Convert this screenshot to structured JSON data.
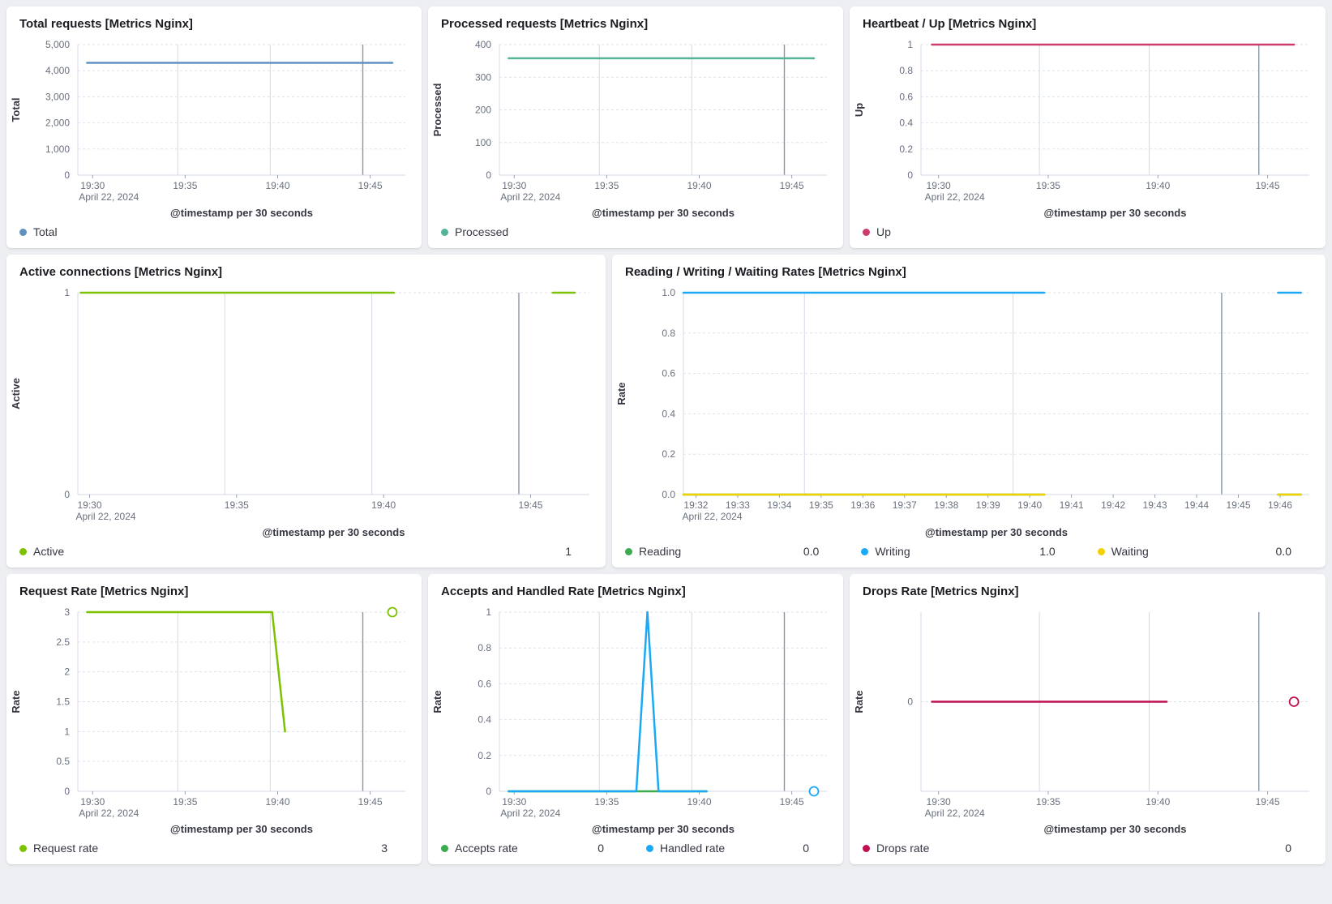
{
  "app": {
    "background": "#edeff3",
    "panel_background": "#ffffff"
  },
  "chart_data": [
    {
      "type": "line",
      "title": "Total requests [Metrics Nginx]",
      "ylabel": "Total",
      "xlabel": "@timestamp per 30 seconds",
      "xlim": [
        -0.8,
        16.9
      ],
      "ylim": [
        0,
        5000
      ],
      "yticks": [
        {
          "v": 5000,
          "label": "5,000"
        },
        {
          "v": 4000,
          "label": "4,000"
        },
        {
          "v": 3000,
          "label": "3,000"
        },
        {
          "v": 2000,
          "label": "2,000"
        },
        {
          "v": 1000,
          "label": "1,000"
        },
        {
          "v": 0,
          "label": "0"
        }
      ],
      "xticks": [
        {
          "v": 0,
          "label": "19:30",
          "sub": "April 22, 2024"
        },
        {
          "v": 5,
          "label": "19:35"
        },
        {
          "v": 10,
          "label": "19:40"
        },
        {
          "v": 15,
          "label": "19:45"
        }
      ],
      "vgrid": [
        4.6,
        9.6
      ],
      "annotation_x": 14.6,
      "series": [
        {
          "name": "Total",
          "color": "#6092C0",
          "segments": [
            [
              [
                -0.3,
                4300
              ],
              [
                16.2,
                4300
              ]
            ]
          ]
        }
      ],
      "legend": [
        {
          "label": "Total"
        }
      ]
    },
    {
      "type": "line",
      "title": "Processed requests [Metrics Nginx]",
      "ylabel": "Processed",
      "xlabel": "@timestamp per 30 seconds",
      "xlim": [
        -0.8,
        16.9
      ],
      "ylim": [
        0,
        400
      ],
      "yticks": [
        {
          "v": 400,
          "label": "400"
        },
        {
          "v": 300,
          "label": "300"
        },
        {
          "v": 200,
          "label": "200"
        },
        {
          "v": 100,
          "label": "100"
        },
        {
          "v": 0,
          "label": "0"
        }
      ],
      "xticks": [
        {
          "v": 0,
          "label": "19:30",
          "sub": "April 22, 2024"
        },
        {
          "v": 5,
          "label": "19:35"
        },
        {
          "v": 10,
          "label": "19:40"
        },
        {
          "v": 15,
          "label": "19:45"
        }
      ],
      "vgrid": [
        4.6,
        9.6
      ],
      "annotation_x": 14.6,
      "series": [
        {
          "name": "Processed",
          "color": "#54B399",
          "segments": [
            [
              [
                -0.3,
                358
              ],
              [
                16.2,
                358
              ]
            ]
          ]
        }
      ],
      "legend": [
        {
          "label": "Processed"
        }
      ]
    },
    {
      "type": "line",
      "title": "Heartbeat / Up [Metrics Nginx]",
      "ylabel": "Up",
      "xlabel": "@timestamp per 30 seconds",
      "xlim": [
        -0.8,
        16.9
      ],
      "ylim": [
        0,
        1
      ],
      "yticks": [
        {
          "v": 1,
          "label": "1"
        },
        {
          "v": 0.8,
          "label": "0.8"
        },
        {
          "v": 0.6,
          "label": "0.6"
        },
        {
          "v": 0.4,
          "label": "0.4"
        },
        {
          "v": 0.2,
          "label": "0.2"
        },
        {
          "v": 0,
          "label": "0"
        }
      ],
      "xticks": [
        {
          "v": 0,
          "label": "19:30",
          "sub": "April 22, 2024"
        },
        {
          "v": 5,
          "label": "19:35"
        },
        {
          "v": 10,
          "label": "19:40"
        },
        {
          "v": 15,
          "label": "19:45"
        }
      ],
      "vgrid": [
        4.6,
        9.6
      ],
      "annotation_x": 14.6,
      "series": [
        {
          "name": "Up",
          "color": "#CC3A6E",
          "segments": [
            [
              [
                -0.3,
                1
              ],
              [
                16.2,
                1
              ]
            ]
          ]
        }
      ],
      "legend": [
        {
          "label": "Up"
        }
      ]
    },
    {
      "type": "line",
      "title": "Active connections [Metrics Nginx]",
      "ylabel": "Active",
      "xlabel": "@timestamp per 30 seconds",
      "xlim": [
        -0.4,
        17.0
      ],
      "ylim": [
        0,
        1
      ],
      "yticks": [
        {
          "v": 1,
          "label": "1"
        },
        {
          "v": 0,
          "label": "0"
        }
      ],
      "xticks": [
        {
          "v": 0,
          "label": "19:30",
          "sub": "April 22, 2024"
        },
        {
          "v": 5,
          "label": "19:35"
        },
        {
          "v": 10,
          "label": "19:40"
        },
        {
          "v": 15,
          "label": "19:45"
        }
      ],
      "vgrid": [
        4.6,
        9.6
      ],
      "annotation_x": 14.6,
      "series": [
        {
          "name": "Active",
          "color": "#7CC200",
          "segments": [
            [
              [
                -0.3,
                1
              ],
              [
                10.35,
                1
              ]
            ],
            [
              [
                15.75,
                1
              ],
              [
                16.5,
                1
              ]
            ]
          ]
        }
      ],
      "legend": [
        {
          "label": "Active",
          "value": "1"
        }
      ]
    },
    {
      "type": "line",
      "title": "Reading / Writing / Waiting Rates [Metrics Nginx]",
      "ylabel": "Rate",
      "xlabel": "@timestamp per 30 seconds",
      "xlim": [
        1.7,
        16.7
      ],
      "ylim": [
        0,
        1
      ],
      "yticks": [
        {
          "v": 1,
          "label": "1.0"
        },
        {
          "v": 0.8,
          "label": "0.8"
        },
        {
          "v": 0.6,
          "label": "0.6"
        },
        {
          "v": 0.4,
          "label": "0.4"
        },
        {
          "v": 0.2,
          "label": "0.2"
        },
        {
          "v": 0,
          "label": "0.0"
        }
      ],
      "xticks": [
        {
          "v": 2,
          "label": "19:32",
          "sub": "April 22, 2024"
        },
        {
          "v": 3,
          "label": "19:33"
        },
        {
          "v": 4,
          "label": "19:34"
        },
        {
          "v": 5,
          "label": "19:35"
        },
        {
          "v": 6,
          "label": "19:36"
        },
        {
          "v": 7,
          "label": "19:37"
        },
        {
          "v": 8,
          "label": "19:38"
        },
        {
          "v": 9,
          "label": "19:39"
        },
        {
          "v": 10,
          "label": "19:40"
        },
        {
          "v": 11,
          "label": "19:41"
        },
        {
          "v": 12,
          "label": "19:42"
        },
        {
          "v": 13,
          "label": "19:43"
        },
        {
          "v": 14,
          "label": "19:44"
        },
        {
          "v": 15,
          "label": "19:45"
        },
        {
          "v": 16,
          "label": "19:46"
        }
      ],
      "vgrid": [
        4.6,
        9.6
      ],
      "annotation_x": 14.6,
      "series": [
        {
          "name": "Reading",
          "color": "#3CAB4F",
          "segments": [
            [
              [
                1.7,
                0
              ],
              [
                10.35,
                0
              ]
            ],
            [
              [
                15.95,
                0
              ],
              [
                16.5,
                0
              ]
            ]
          ]
        },
        {
          "name": "Writing",
          "color": "#1BA9F5",
          "segments": [
            [
              [
                1.7,
                1
              ],
              [
                10.35,
                1
              ]
            ],
            [
              [
                15.95,
                1
              ],
              [
                16.5,
                1
              ]
            ]
          ]
        },
        {
          "name": "Waiting",
          "color": "#F1D100",
          "segments": [
            [
              [
                1.7,
                0
              ],
              [
                10.35,
                0
              ]
            ],
            [
              [
                15.95,
                0
              ],
              [
                16.5,
                0
              ]
            ]
          ]
        }
      ],
      "legend": [
        {
          "label": "Reading",
          "value": "0.0"
        },
        {
          "label": "Writing",
          "value": "1.0"
        },
        {
          "label": "Waiting",
          "value": "0.0"
        }
      ]
    },
    {
      "type": "line",
      "title": "Request Rate [Metrics Nginx]",
      "ylabel": "Rate",
      "xlabel": "@timestamp per 30 seconds",
      "xlim": [
        -0.8,
        16.9
      ],
      "ylim": [
        0,
        3
      ],
      "yticks": [
        {
          "v": 3,
          "label": "3"
        },
        {
          "v": 2.5,
          "label": "2.5"
        },
        {
          "v": 2,
          "label": "2"
        },
        {
          "v": 1.5,
          "label": "1.5"
        },
        {
          "v": 1,
          "label": "1"
        },
        {
          "v": 0.5,
          "label": "0.5"
        },
        {
          "v": 0,
          "label": "0"
        }
      ],
      "xticks": [
        {
          "v": 0,
          "label": "19:30",
          "sub": "April 22, 2024"
        },
        {
          "v": 5,
          "label": "19:35"
        },
        {
          "v": 10,
          "label": "19:40"
        },
        {
          "v": 15,
          "label": "19:45"
        }
      ],
      "vgrid": [
        4.6,
        9.6
      ],
      "annotation_x": 14.6,
      "series": [
        {
          "name": "Request rate",
          "color": "#7CC200",
          "segments": [
            [
              [
                -0.3,
                3
              ],
              [
                9.7,
                3
              ],
              [
                10.4,
                1
              ]
            ]
          ],
          "markers": [
            [
              16.2,
              3
            ]
          ]
        }
      ],
      "legend": [
        {
          "label": "Request rate",
          "value": "3"
        }
      ]
    },
    {
      "type": "line",
      "title": "Accepts and Handled Rate [Metrics Nginx]",
      "ylabel": "Rate",
      "xlabel": "@timestamp per 30 seconds",
      "xlim": [
        -0.8,
        16.9
      ],
      "ylim": [
        0,
        1
      ],
      "yticks": [
        {
          "v": 1,
          "label": "1"
        },
        {
          "v": 0.8,
          "label": "0.8"
        },
        {
          "v": 0.6,
          "label": "0.6"
        },
        {
          "v": 0.4,
          "label": "0.4"
        },
        {
          "v": 0.2,
          "label": "0.2"
        },
        {
          "v": 0,
          "label": "0"
        }
      ],
      "xticks": [
        {
          "v": 0,
          "label": "19:30",
          "sub": "April 22, 2024"
        },
        {
          "v": 5,
          "label": "19:35"
        },
        {
          "v": 10,
          "label": "19:40"
        },
        {
          "v": 15,
          "label": "19:45"
        }
      ],
      "vgrid": [
        4.6,
        9.6
      ],
      "annotation_x": 14.6,
      "series": [
        {
          "name": "Accepts rate",
          "color": "#3CAB4F",
          "segments": [
            [
              [
                -0.3,
                0
              ],
              [
                10.4,
                0
              ]
            ]
          ]
        },
        {
          "name": "Handled rate",
          "color": "#1BA9F5",
          "segments": [
            [
              [
                -0.3,
                0
              ],
              [
                6.6,
                0
              ],
              [
                7.2,
                1
              ],
              [
                7.8,
                0
              ],
              [
                10.4,
                0
              ]
            ]
          ],
          "markers": [
            [
              16.2,
              0
            ]
          ]
        }
      ],
      "legend": [
        {
          "label": "Accepts rate",
          "value": "0"
        },
        {
          "label": "Handled rate",
          "value": "0"
        }
      ]
    },
    {
      "type": "line",
      "title": "Drops Rate [Metrics Nginx]",
      "ylabel": "Rate",
      "xlabel": "@timestamp per 30 seconds",
      "xlim": [
        -0.8,
        16.9
      ],
      "ylim": [
        -1,
        1
      ],
      "yticks": [
        {
          "v": 0,
          "label": "0"
        }
      ],
      "xticks": [
        {
          "v": 0,
          "label": "19:30",
          "sub": "April 22, 2024"
        },
        {
          "v": 5,
          "label": "19:35"
        },
        {
          "v": 10,
          "label": "19:40"
        },
        {
          "v": 15,
          "label": "19:45"
        }
      ],
      "vgrid": [
        4.6,
        9.6
      ],
      "annotation_x": 14.6,
      "series": [
        {
          "name": "Drops rate",
          "color": "#C01052",
          "segments": [
            [
              [
                -0.3,
                0
              ],
              [
                10.4,
                0
              ]
            ]
          ],
          "markers": [
            [
              16.2,
              0
            ]
          ]
        }
      ],
      "legend": [
        {
          "label": "Drops rate",
          "value": "0"
        }
      ]
    }
  ]
}
